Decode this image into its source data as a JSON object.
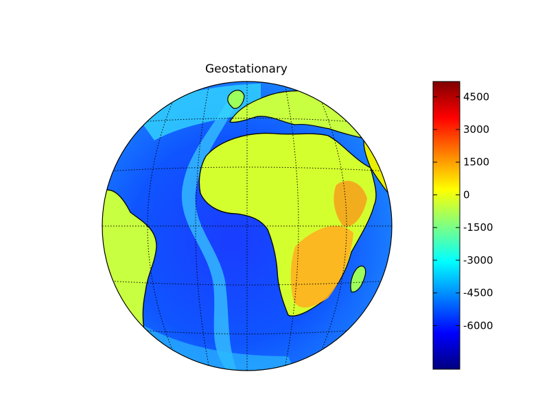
{
  "map": {
    "title": "Geostationary",
    "projection": "geostationary",
    "center": {
      "lat": 0,
      "lon": 0
    },
    "field": "elevation",
    "graticule": {
      "style": "dotted",
      "parallel_step_deg": 15,
      "meridian_step_deg": 15
    }
  },
  "colorbar": {
    "colormap": "jet",
    "range": [
      -8000,
      5200
    ],
    "ticks": [
      {
        "value": 4500,
        "label": "4500"
      },
      {
        "value": 3000,
        "label": "3000"
      },
      {
        "value": 1500,
        "label": "1500"
      },
      {
        "value": 0,
        "label": "0"
      },
      {
        "value": -1500,
        "label": "-1500"
      },
      {
        "value": -3000,
        "label": "-3000"
      },
      {
        "value": -4500,
        "label": "-4500"
      },
      {
        "value": -6000,
        "label": "-6000"
      }
    ],
    "stops": [
      "#00007f",
      "#0000ff",
      "#0080ff",
      "#00ffff",
      "#80ff80",
      "#ffff00",
      "#ff8000",
      "#ff0000",
      "#7f0000"
    ]
  }
}
